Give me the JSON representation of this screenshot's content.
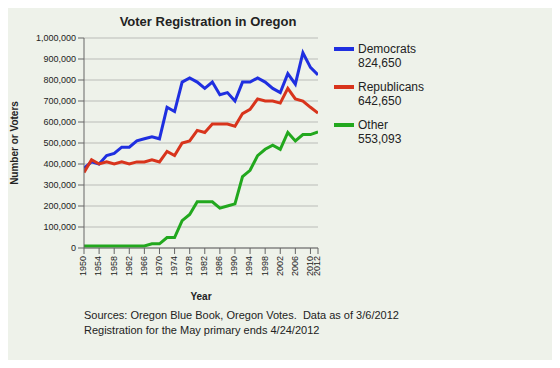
{
  "chart_data": {
    "type": "line",
    "title": "Voter Registration in Oregon",
    "x_label": "Year",
    "y_label": "Number or Voters",
    "x": [
      1950,
      1952,
      1954,
      1956,
      1958,
      1960,
      1962,
      1964,
      1966,
      1968,
      1970,
      1972,
      1974,
      1976,
      1978,
      1980,
      1982,
      1984,
      1986,
      1988,
      1990,
      1992,
      1994,
      1996,
      1998,
      2000,
      2002,
      2004,
      2006,
      2008,
      2010,
      2012
    ],
    "series": [
      {
        "name": "Democrats",
        "color": "#1f2fe0",
        "values": [
          380000,
          410000,
          400000,
          440000,
          450000,
          480000,
          480000,
          510000,
          520000,
          530000,
          520000,
          670000,
          650000,
          790000,
          810000,
          790000,
          760000,
          790000,
          730000,
          740000,
          700000,
          790000,
          790000,
          810000,
          790000,
          760000,
          740000,
          830000,
          780000,
          930000,
          860000,
          824650
        ]
      },
      {
        "name": "Republicans",
        "color": "#d8341c",
        "values": [
          360000,
          420000,
          400000,
          410000,
          400000,
          410000,
          400000,
          410000,
          410000,
          420000,
          410000,
          460000,
          440000,
          500000,
          510000,
          560000,
          550000,
          590000,
          590000,
          590000,
          580000,
          640000,
          660000,
          710000,
          700000,
          700000,
          690000,
          760000,
          710000,
          700000,
          670000,
          642650
        ]
      },
      {
        "name": "Other",
        "color": "#22a81e",
        "values": [
          10000,
          10000,
          10000,
          10000,
          10000,
          10000,
          10000,
          10000,
          10000,
          20000,
          20000,
          50000,
          50000,
          130000,
          160000,
          220000,
          220000,
          220000,
          190000,
          200000,
          210000,
          340000,
          370000,
          440000,
          470000,
          490000,
          470000,
          550000,
          510000,
          540000,
          540000,
          553093
        ]
      }
    ],
    "xlim": [
      1950,
      2012
    ],
    "xticks": [
      1950,
      1954,
      1958,
      1962,
      1966,
      1970,
      1974,
      1978,
      1982,
      1986,
      1990,
      1994,
      1998,
      2002,
      2006,
      2010,
      2012
    ],
    "ylim": [
      0,
      1000000
    ],
    "yticks": [
      0,
      {
        "value": 100000,
        "label": "100,000"
      },
      {
        "value": 200000,
        "label": "200,000"
      },
      {
        "value": 300000,
        "label": "300,000"
      },
      {
        "value": 400000,
        "label": "400,000"
      },
      {
        "value": 500000,
        "label": "500,000"
      },
      {
        "value": 600000,
        "label": "600,000"
      },
      {
        "value": 700000,
        "label": "700,000"
      },
      {
        "value": 800000,
        "label": "800,000"
      },
      {
        "value": 900000,
        "label": "900,000"
      },
      {
        "value": 1000000,
        "label": "1,000,000"
      }
    ],
    "grid": true,
    "annotations": [
      {
        "text": "824,650",
        "series": "Democrats"
      },
      {
        "text": "642,650",
        "series": "Republicans"
      },
      {
        "text": "553,093",
        "series": "Other"
      },
      {
        "text": "Sources: Oregon Blue Book, Oregon Votes.  Data as of 3/6/2012"
      },
      {
        "text": "Registration for the May primary ends 4/24/2012"
      }
    ]
  }
}
